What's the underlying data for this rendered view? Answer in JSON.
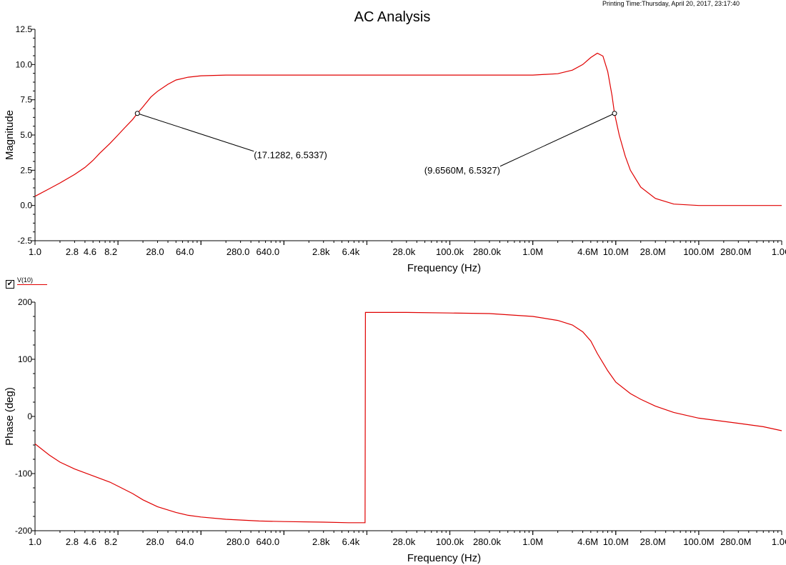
{
  "printing_time": "Printing Time:Thursday, April 20, 2017, 23:17:40",
  "legend": {
    "label": "V(10)",
    "checked": true,
    "color": "#e00000"
  },
  "chart_data": [
    {
      "type": "line",
      "title": "AC Analysis",
      "xlabel": "Frequency (Hz)",
      "ylabel": "Magnitude",
      "xscale": "log",
      "xlim": [
        1,
        1000000000
      ],
      "ylim": [
        -2.5,
        12.5
      ],
      "yticks": [
        -2.5,
        0,
        2.5,
        5,
        7.5,
        10,
        12.5
      ],
      "ytick_labels": [
        "-2.5",
        "0.0",
        "2.5",
        "5.0",
        "7.5",
        "10.0",
        "12.5"
      ],
      "series": [
        {
          "name": "V(10)",
          "color": "#e00000",
          "x": [
            1,
            1.5,
            2,
            3,
            4,
            5,
            6,
            8,
            10,
            12,
            15,
            17.1282,
            20,
            25,
            30,
            40,
            50,
            70,
            100,
            200,
            500,
            1000,
            1000000,
            2000000,
            3000000,
            4000000,
            5000000,
            6000000,
            7000000,
            8000000,
            9000000,
            9656000,
            11000000,
            13000000,
            15000000,
            20000000,
            30000000,
            50000000,
            100000000,
            1000000000
          ],
          "y": [
            0.65,
            1.2,
            1.6,
            2.2,
            2.7,
            3.2,
            3.7,
            4.4,
            5.0,
            5.5,
            6.1,
            6.5337,
            7.0,
            7.7,
            8.1,
            8.6,
            8.9,
            9.1,
            9.2,
            9.25,
            9.25,
            9.25,
            9.25,
            9.35,
            9.6,
            10.0,
            10.5,
            10.8,
            10.6,
            9.5,
            7.8,
            6.5327,
            5.0,
            3.5,
            2.5,
            1.3,
            0.5,
            0.1,
            0.0,
            0.0
          ]
        }
      ],
      "annotations": [
        {
          "text": "(17.1282, 6.5337)",
          "x": 17.1282,
          "y": 6.5337
        },
        {
          "text": "(9.6560M, 6.5327)",
          "x": 9656000,
          "y": 6.5327
        }
      ]
    },
    {
      "type": "line",
      "xlabel": "Frequency (Hz)",
      "ylabel": "Phase (deg)",
      "xscale": "log",
      "xlim": [
        1,
        1000000000
      ],
      "ylim": [
        -200,
        200
      ],
      "yticks": [
        -200,
        -100,
        0,
        100,
        200
      ],
      "ytick_labels": [
        "-200",
        "-100",
        "0",
        "100",
        "200"
      ],
      "series": [
        {
          "name": "V(10)",
          "color": "#e00000",
          "x": [
            1,
            1.5,
            2,
            3,
            5,
            8,
            10,
            15,
            20,
            30,
            50,
            70,
            100,
            200,
            500,
            1000,
            3000,
            6000,
            9500,
            9600,
            10000,
            30000,
            100000,
            300000,
            1000000,
            2000000,
            3000000,
            4000000,
            5000000,
            6000000,
            8000000,
            10000000,
            15000000,
            20000000,
            30000000,
            50000000,
            100000000,
            300000000,
            600000000,
            1000000000
          ],
          "y": [
            -48,
            -68,
            -80,
            -92,
            -104,
            -115,
            -122,
            -135,
            -146,
            -158,
            -168,
            -173,
            -176,
            -180,
            -183,
            -184,
            -185,
            -186,
            -186,
            182,
            182,
            182,
            181,
            180,
            175,
            168,
            160,
            148,
            132,
            110,
            80,
            60,
            40,
            30,
            18,
            7,
            -3,
            -12,
            -18,
            -25
          ]
        }
      ]
    }
  ]
}
